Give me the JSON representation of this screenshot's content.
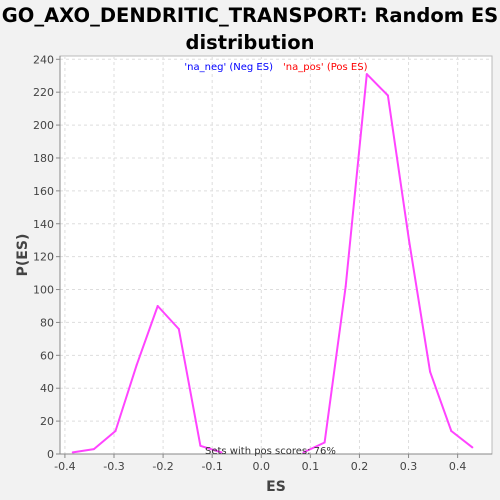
{
  "chart_data": {
    "type": "line",
    "title": "GO_AXO_DENDRITIC_TRANSPORT: Random ES distribution",
    "title_lines": [
      "GO_AXO_DENDRITIC_TRANSPORT: Random ES",
      "distribution"
    ],
    "xlabel": "ES",
    "ylabel": "P(ES)",
    "xlim": [
      -0.41,
      0.47
    ],
    "ylim": [
      0,
      242
    ],
    "x_ticks": [
      -0.4,
      -0.3,
      -0.2,
      -0.1,
      0.0,
      0.1,
      0.2,
      0.3,
      0.4
    ],
    "x_tick_labels": [
      "-0.4",
      "-0.3",
      "-0.2",
      "-0.1",
      "0.0",
      "0.1",
      "0.2",
      "0.3",
      "0.4"
    ],
    "y_ticks": [
      0,
      20,
      40,
      60,
      80,
      100,
      120,
      140,
      160,
      180,
      200,
      220,
      240
    ],
    "y_tick_labels": [
      "0",
      "20",
      "40",
      "60",
      "80",
      "100",
      "120",
      "140",
      "160",
      "180",
      "200",
      "220",
      "240"
    ],
    "grid": true,
    "legend_position": "top-center",
    "annotation": "Sets with pos scores: 76%",
    "series": [
      {
        "name": "'na_neg' (Neg ES)",
        "color": "#0000ff",
        "x": [
          -0.384,
          -0.341,
          -0.297,
          -0.254,
          -0.211,
          -0.168,
          -0.124,
          -0.081
        ],
        "y": [
          1,
          3,
          14,
          54,
          90,
          76,
          5,
          1
        ]
      },
      {
        "name": "'na_pos' (Pos ES)",
        "color": "#ff0000",
        "x": [
          0.086,
          0.129,
          0.172,
          0.215,
          0.258,
          0.301,
          0.344,
          0.387,
          0.43
        ],
        "y": [
          1,
          7,
          102,
          231,
          218,
          130,
          50,
          14,
          4
        ]
      }
    ],
    "line_color": "#ff44ff"
  }
}
